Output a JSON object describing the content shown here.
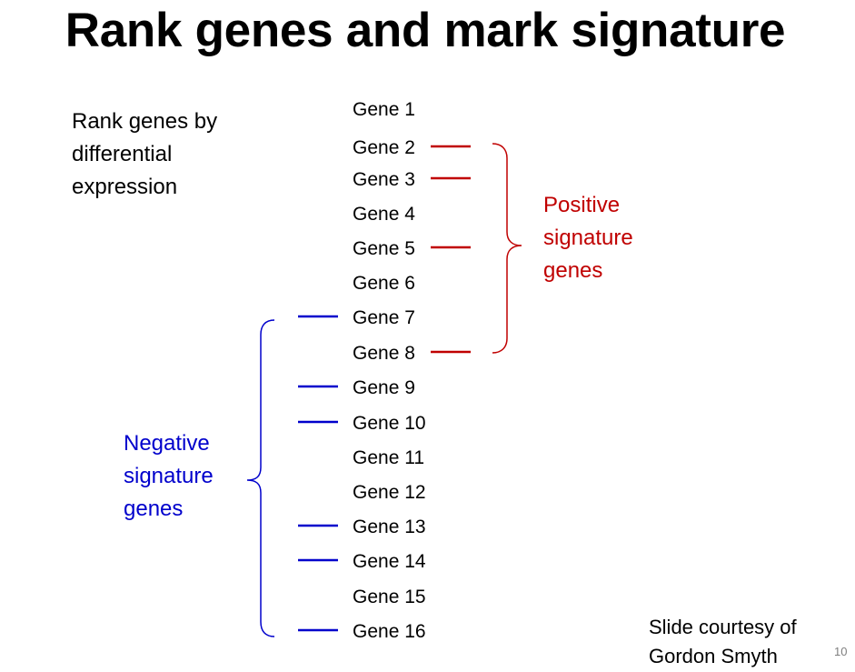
{
  "title": "Rank genes and mark signature",
  "description_lines": [
    "Rank genes by",
    "differential",
    "expression"
  ],
  "genes": [
    "Gene 1",
    "Gene 2",
    "Gene 3",
    "Gene 4",
    "Gene 5",
    "Gene 6",
    "Gene 7",
    "Gene 8",
    "Gene 9",
    "Gene 10",
    "Gene 11",
    "Gene 12",
    "Gene 13",
    "Gene 14",
    "Gene 15",
    "Gene 16"
  ],
  "positive_signature": {
    "label_lines": [
      "Positive",
      "signature",
      "genes"
    ],
    "color": "#c00000",
    "genes": [
      "Gene 2",
      "Gene 3",
      "Gene 5",
      "Gene 8"
    ]
  },
  "negative_signature": {
    "label_lines": [
      "Negative",
      "signature",
      "genes"
    ],
    "color": "#0000cc",
    "genes": [
      "Gene 7",
      "Gene 9",
      "Gene 10",
      "Gene 13",
      "Gene 14",
      "Gene 16"
    ]
  },
  "credit_lines": [
    "Slide courtesy of",
    "Gordon Smyth"
  ],
  "page_number": "10"
}
